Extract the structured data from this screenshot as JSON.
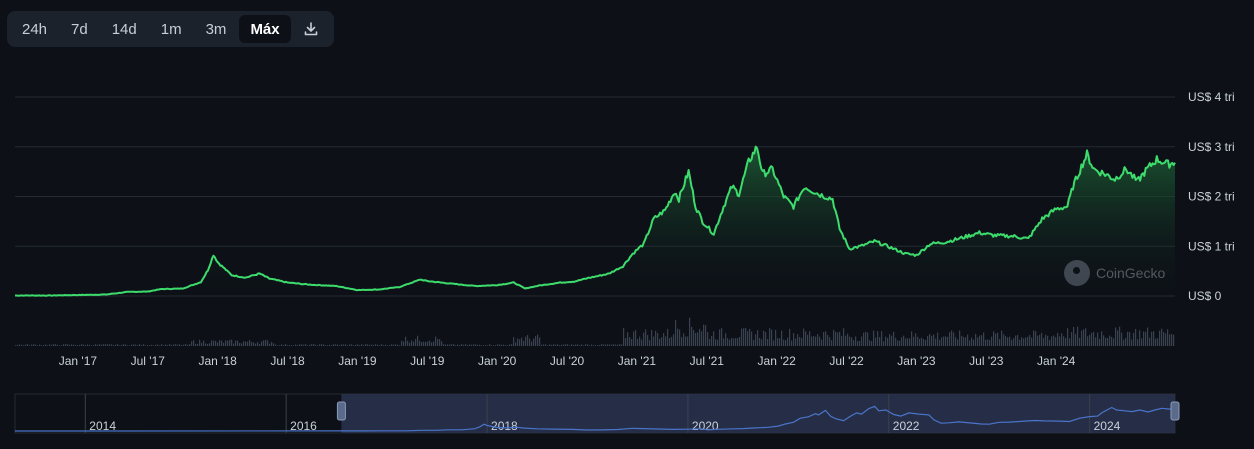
{
  "ranges": [
    {
      "label": "24h",
      "active": false
    },
    {
      "label": "7d",
      "active": false
    },
    {
      "label": "14d",
      "active": false
    },
    {
      "label": "1m",
      "active": false
    },
    {
      "label": "3m",
      "active": false
    },
    {
      "label": "Máx",
      "active": true
    }
  ],
  "download_icon": "download-icon",
  "watermark": "CoinGecko",
  "colors": {
    "line": "#3ddc6c",
    "area_top": "#1f6b39",
    "grid": "#252b33",
    "volume": "#3a4250",
    "navigator_line": "#4a74c9",
    "navigator_selection": "#2b3450"
  },
  "chart_data": {
    "type": "area",
    "ylabel": "",
    "xlabel": "",
    "y_unit": "US$ trillion",
    "ylim": [
      0,
      4
    ],
    "y_ticks": [
      {
        "value": 0,
        "label": "US$ 0"
      },
      {
        "value": 1,
        "label": "US$ 1 tri"
      },
      {
        "value": 2,
        "label": "US$ 2 tri"
      },
      {
        "value": 3,
        "label": "US$ 3 tri"
      },
      {
        "value": 4,
        "label": "US$ 4 tri"
      }
    ],
    "x_ticks": [
      {
        "t": 2017.0,
        "label": "Jan '17"
      },
      {
        "t": 2017.5,
        "label": "Jul '17"
      },
      {
        "t": 2018.0,
        "label": "Jan '18"
      },
      {
        "t": 2018.5,
        "label": "Jul '18"
      },
      {
        "t": 2019.0,
        "label": "Jan '19"
      },
      {
        "t": 2019.5,
        "label": "Jul '19"
      },
      {
        "t": 2020.0,
        "label": "Jan '20"
      },
      {
        "t": 2020.5,
        "label": "Jul '20"
      },
      {
        "t": 2021.0,
        "label": "Jan '21"
      },
      {
        "t": 2021.5,
        "label": "Jul '21"
      },
      {
        "t": 2022.0,
        "label": "Jan '22"
      },
      {
        "t": 2022.5,
        "label": "Jul '22"
      },
      {
        "t": 2023.0,
        "label": "Jan '23"
      },
      {
        "t": 2023.5,
        "label": "Jul '23"
      },
      {
        "t": 2024.0,
        "label": "Jan '24"
      }
    ],
    "xlim": [
      2016.55,
      2024.85
    ],
    "series": [
      {
        "name": "",
        "points": [
          [
            2016.55,
            0.01
          ],
          [
            2016.8,
            0.01
          ],
          [
            2017.0,
            0.02
          ],
          [
            2017.2,
            0.03
          ],
          [
            2017.35,
            0.08
          ],
          [
            2017.5,
            0.09
          ],
          [
            2017.6,
            0.14
          ],
          [
            2017.75,
            0.15
          ],
          [
            2017.88,
            0.28
          ],
          [
            2017.93,
            0.52
          ],
          [
            2017.97,
            0.83
          ],
          [
            2018.0,
            0.68
          ],
          [
            2018.05,
            0.55
          ],
          [
            2018.1,
            0.42
          ],
          [
            2018.2,
            0.37
          ],
          [
            2018.3,
            0.45
          ],
          [
            2018.37,
            0.35
          ],
          [
            2018.5,
            0.27
          ],
          [
            2018.65,
            0.23
          ],
          [
            2018.85,
            0.2
          ],
          [
            2019.0,
            0.12
          ],
          [
            2019.15,
            0.13
          ],
          [
            2019.3,
            0.18
          ],
          [
            2019.45,
            0.33
          ],
          [
            2019.5,
            0.3
          ],
          [
            2019.7,
            0.24
          ],
          [
            2019.85,
            0.2
          ],
          [
            2020.0,
            0.22
          ],
          [
            2020.12,
            0.27
          ],
          [
            2020.2,
            0.15
          ],
          [
            2020.3,
            0.21
          ],
          [
            2020.45,
            0.27
          ],
          [
            2020.55,
            0.29
          ],
          [
            2020.65,
            0.36
          ],
          [
            2020.8,
            0.45
          ],
          [
            2020.9,
            0.6
          ],
          [
            2020.97,
            0.85
          ],
          [
            2021.05,
            1.05
          ],
          [
            2021.12,
            1.55
          ],
          [
            2021.2,
            1.72
          ],
          [
            2021.27,
            2.1
          ],
          [
            2021.3,
            1.95
          ],
          [
            2021.37,
            2.5
          ],
          [
            2021.42,
            1.8
          ],
          [
            2021.47,
            1.5
          ],
          [
            2021.55,
            1.25
          ],
          [
            2021.62,
            1.8
          ],
          [
            2021.68,
            2.2
          ],
          [
            2021.73,
            2.05
          ],
          [
            2021.8,
            2.7
          ],
          [
            2021.86,
            3.0
          ],
          [
            2021.9,
            2.45
          ],
          [
            2021.97,
            2.55
          ],
          [
            2022.05,
            2.0
          ],
          [
            2022.12,
            1.8
          ],
          [
            2022.2,
            2.2
          ],
          [
            2022.3,
            2.05
          ],
          [
            2022.4,
            1.95
          ],
          [
            2022.45,
            1.35
          ],
          [
            2022.52,
            0.95
          ],
          [
            2022.6,
            1.0
          ],
          [
            2022.7,
            1.1
          ],
          [
            2022.82,
            0.97
          ],
          [
            2022.92,
            0.85
          ],
          [
            2023.0,
            0.82
          ],
          [
            2023.1,
            1.05
          ],
          [
            2023.2,
            1.08
          ],
          [
            2023.3,
            1.15
          ],
          [
            2023.45,
            1.27
          ],
          [
            2023.55,
            1.22
          ],
          [
            2023.7,
            1.2
          ],
          [
            2023.8,
            1.15
          ],
          [
            2023.9,
            1.55
          ],
          [
            2024.0,
            1.75
          ],
          [
            2024.08,
            1.8
          ],
          [
            2024.12,
            2.2
          ],
          [
            2024.18,
            2.6
          ],
          [
            2024.22,
            2.85
          ],
          [
            2024.27,
            2.55
          ],
          [
            2024.35,
            2.45
          ],
          [
            2024.42,
            2.35
          ],
          [
            2024.5,
            2.55
          ],
          [
            2024.58,
            2.3
          ],
          [
            2024.65,
            2.55
          ],
          [
            2024.72,
            2.75
          ],
          [
            2024.8,
            2.65
          ],
          [
            2024.85,
            2.68
          ]
        ]
      }
    ],
    "navigator": {
      "xlim": [
        2013.3,
        2024.85
      ],
      "x_ticks": [
        {
          "t": 2014,
          "label": "2014"
        },
        {
          "t": 2016,
          "label": "2016"
        },
        {
          "t": 2018,
          "label": "2018"
        },
        {
          "t": 2020,
          "label": "2020"
        },
        {
          "t": 2022,
          "label": "2022"
        },
        {
          "t": 2024,
          "label": "2024"
        }
      ],
      "selection": [
        2016.55,
        2024.85
      ]
    },
    "legend": "none",
    "grid": true
  }
}
